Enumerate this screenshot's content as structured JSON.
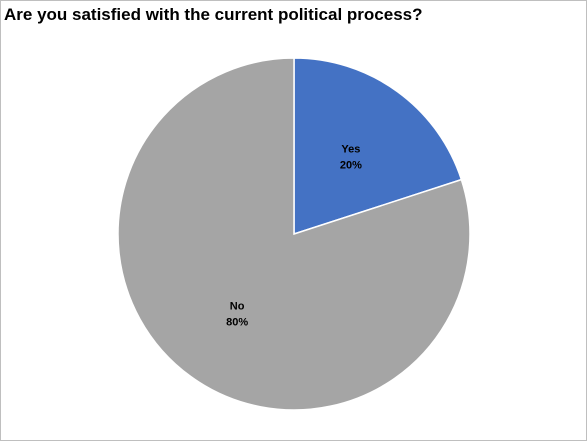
{
  "chart_data": {
    "type": "pie",
    "title": "Are you satisfied with the current political process?",
    "categories": [
      "Yes",
      "No"
    ],
    "values": [
      20,
      80
    ],
    "data_labels": [
      {
        "category": "Yes",
        "percent": "20%"
      },
      {
        "category": "No",
        "percent": "80%"
      }
    ],
    "colors": [
      "#4472C4",
      "#A5A5A5"
    ],
    "start_angle_deg": 0,
    "direction": "clockwise",
    "legend": "none"
  }
}
